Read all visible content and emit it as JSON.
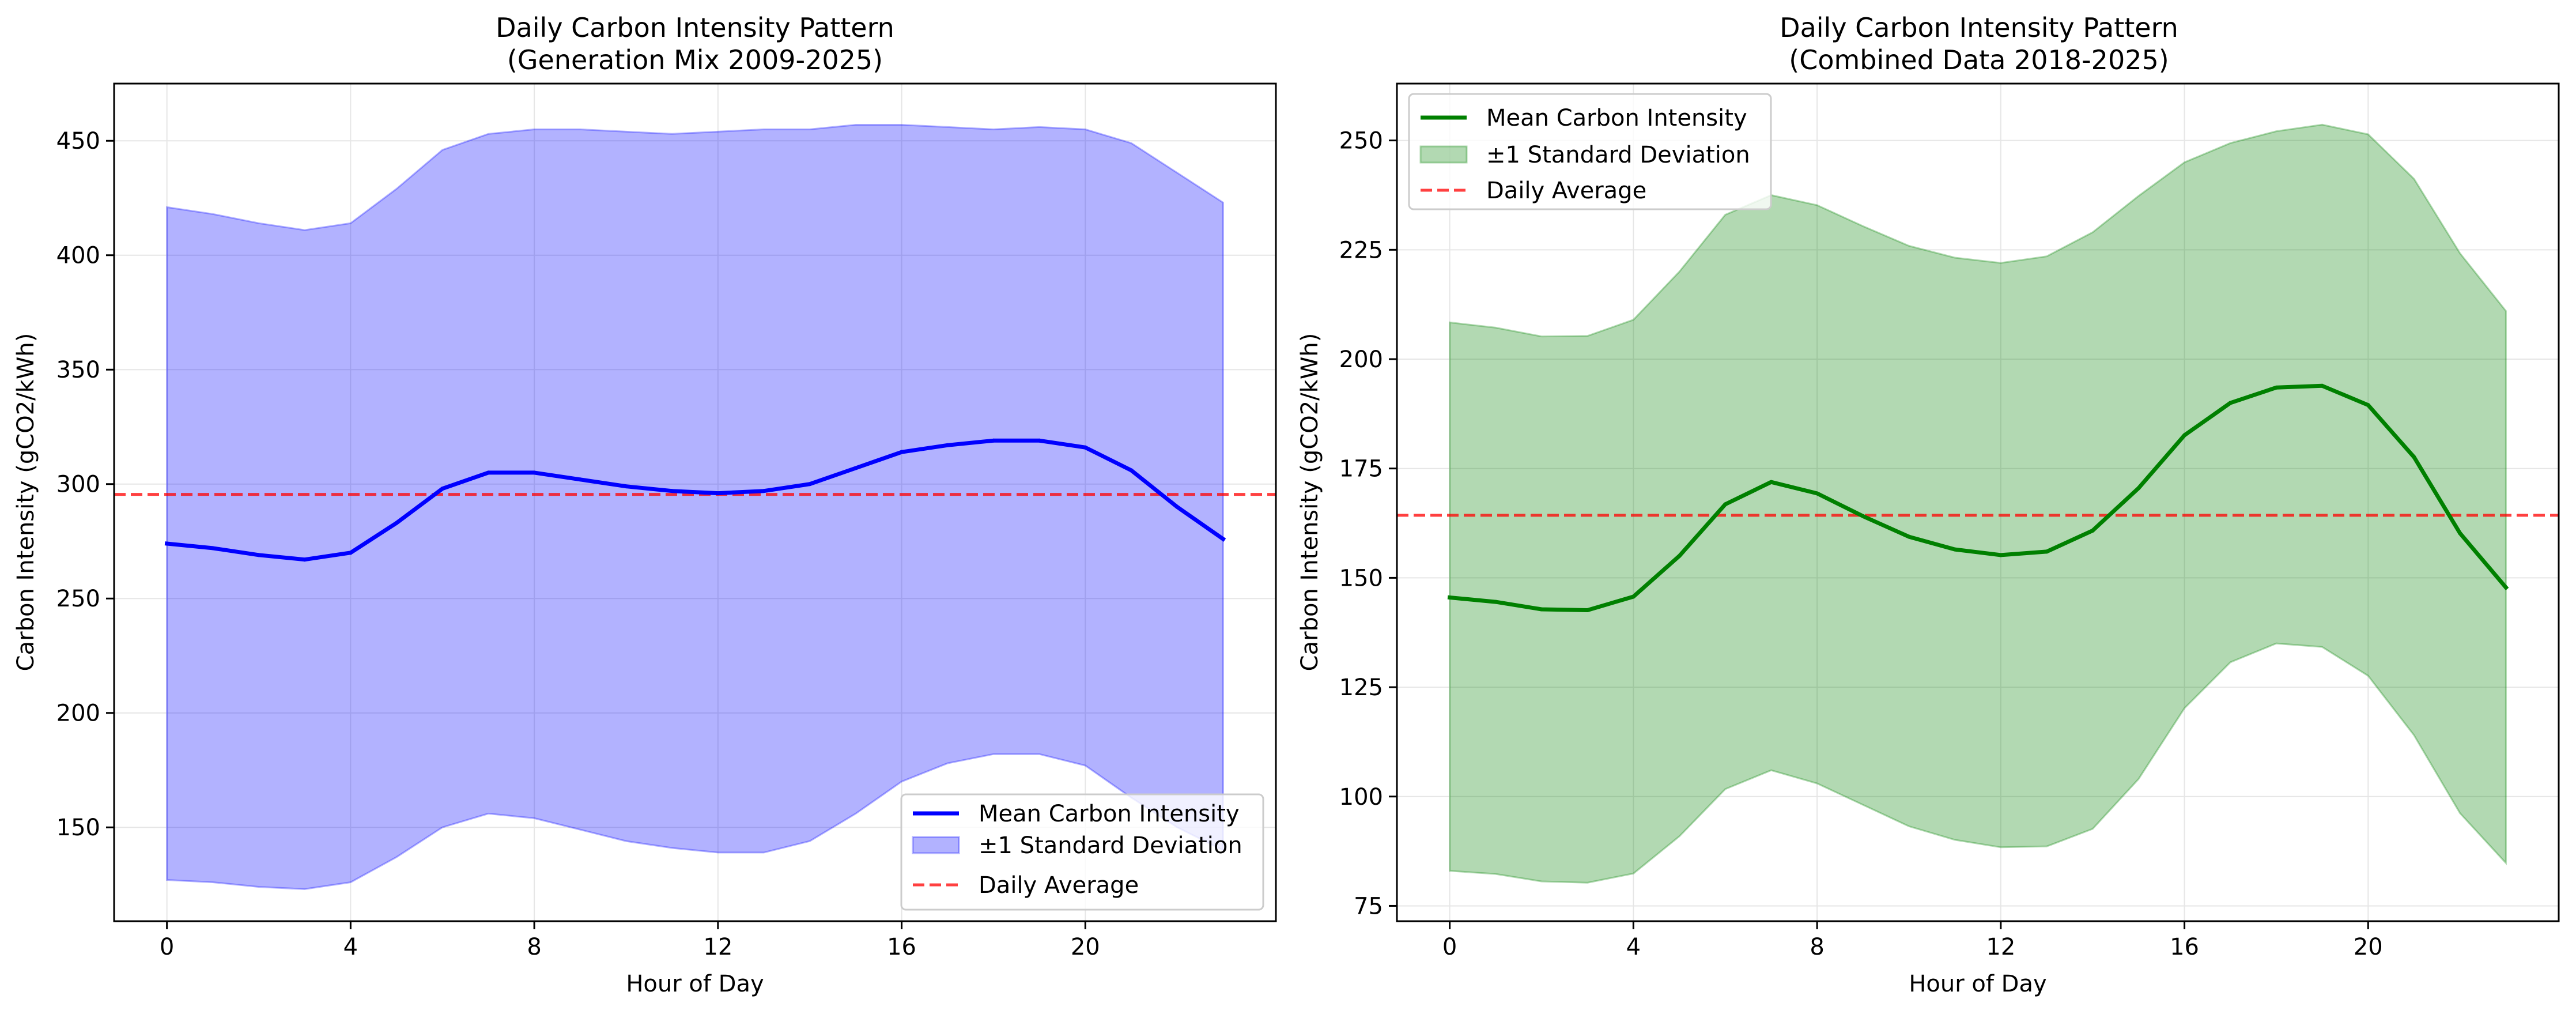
{
  "figure": {
    "background": "#ffffff"
  },
  "chart_data": [
    {
      "type": "area",
      "title": "Daily Carbon Intensity Pattern",
      "subtitle": "(Generation Mix 2009-2025)",
      "xlabel": "Hour of Day",
      "ylabel": "Carbon Intensity (gCO2/kWh)",
      "xlim": [
        -1.15,
        24.15
      ],
      "ylim": [
        109,
        475
      ],
      "xticks": [
        0,
        4,
        8,
        12,
        16,
        20
      ],
      "yticks": [
        150,
        200,
        250,
        300,
        350,
        400,
        450
      ],
      "grid": true,
      "legend_position": "lower-right",
      "x": [
        0,
        1,
        2,
        3,
        4,
        5,
        6,
        7,
        8,
        9,
        10,
        11,
        12,
        13,
        14,
        15,
        16,
        17,
        18,
        19,
        20,
        21,
        22,
        23
      ],
      "mean": {
        "name": "Mean Carbon Intensity",
        "color": "#0000ff",
        "values": [
          274,
          272,
          269,
          267,
          270,
          283,
          298,
          305,
          305,
          302,
          299,
          297,
          296,
          297,
          300,
          307,
          314,
          317,
          319,
          319,
          316,
          306,
          290,
          276
        ]
      },
      "band": {
        "name": "±1 Standard Deviation",
        "color": "#0000ff",
        "upper": [
          421,
          418,
          414,
          411,
          414,
          429,
          446,
          453,
          455,
          455,
          454,
          453,
          454,
          455,
          455,
          457,
          457,
          456,
          455,
          456,
          455,
          449,
          436,
          423
        ],
        "lower": [
          127,
          126,
          124,
          123,
          126,
          137,
          150,
          156,
          154,
          149,
          144,
          141,
          139,
          139,
          144,
          156,
          170,
          178,
          182,
          182,
          177,
          163,
          150,
          140
        ]
      },
      "average": {
        "name": "Daily Average",
        "color": "#ff0000",
        "value": 295.5
      }
    },
    {
      "type": "area",
      "title": "Daily Carbon Intensity Pattern",
      "subtitle": "(Combined Data 2018-2025)",
      "xlabel": "Hour of Day",
      "ylabel": "Carbon Intensity (gCO2/kWh)",
      "xlim": [
        -1.15,
        24.15
      ],
      "ylim": [
        71.5,
        263
      ],
      "xticks": [
        0,
        4,
        8,
        12,
        16,
        20
      ],
      "yticks": [
        75,
        100,
        125,
        150,
        175,
        200,
        225,
        250
      ],
      "grid": true,
      "legend_position": "top-left",
      "x": [
        0,
        1,
        2,
        3,
        4,
        5,
        6,
        7,
        8,
        9,
        10,
        11,
        12,
        13,
        14,
        15,
        16,
        17,
        18,
        19,
        20,
        21,
        22,
        23
      ],
      "mean": {
        "name": "Mean Carbon Intensity",
        "color": "#008000",
        "values": [
          145.5,
          144.5,
          142.8,
          142.6,
          145.7,
          155,
          166.8,
          171.9,
          169.3,
          164.1,
          159.4,
          156.5,
          155.2,
          156,
          160.8,
          170.5,
          182.6,
          190,
          193.5,
          193.9,
          189.5,
          177.6,
          160.2,
          147.8
        ]
      },
      "band": {
        "name": "±1 Standard Deviation",
        "color": "#008000",
        "upper": [
          208.4,
          207.2,
          205.2,
          205.3,
          209,
          220,
          233,
          237.5,
          235.2,
          230.4,
          225.9,
          223.2,
          222,
          223.5,
          229,
          237.3,
          245,
          249.4,
          252.1,
          253.6,
          251.4,
          241.2,
          224.2,
          211
        ],
        "lower": [
          83,
          82.3,
          80.6,
          80.3,
          82.4,
          90.9,
          101.7,
          106,
          103,
          98.1,
          93.2,
          90.1,
          88.4,
          88.6,
          92.6,
          104,
          120.2,
          130.7,
          135,
          134.2,
          127.6,
          114,
          96.2,
          84.8
        ]
      },
      "average": {
        "name": "Daily Average",
        "color": "#ff0000",
        "value": 164.3
      }
    }
  ]
}
